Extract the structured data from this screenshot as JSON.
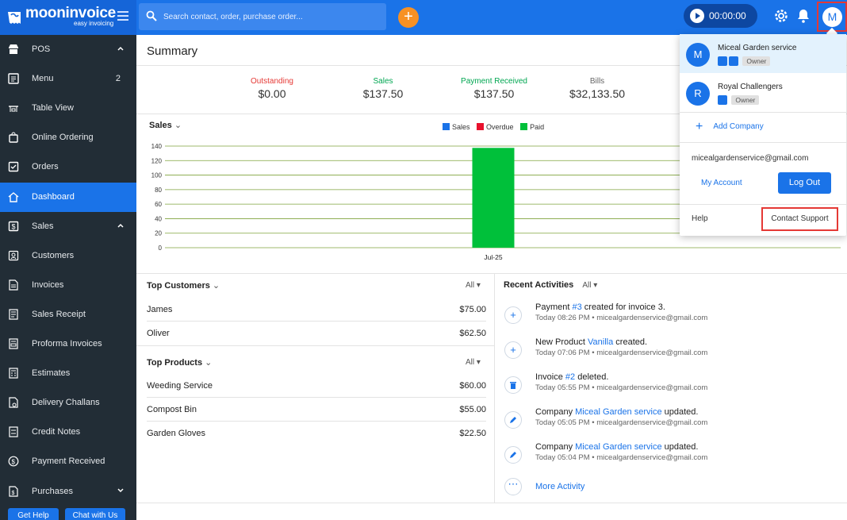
{
  "brand": {
    "name": "mooninvoice",
    "tagline": "easy invoicing"
  },
  "search": {
    "placeholder": "Search contact, order, purchase order..."
  },
  "header": {
    "add_label": "+",
    "timer": "00:00:00",
    "avatar_initial": "M"
  },
  "sidebar": {
    "items": [
      {
        "label": "POS",
        "icon": "store-icon"
      },
      {
        "label": "Menu",
        "icon": "menu-list-icon",
        "badge": "2"
      },
      {
        "label": "Table View",
        "icon": "table-icon"
      },
      {
        "label": "Online Ordering",
        "icon": "shopping-bag-icon"
      },
      {
        "label": "Orders",
        "icon": "orders-icon"
      },
      {
        "label": "Dashboard",
        "icon": "home-icon"
      },
      {
        "label": "Sales",
        "icon": "dollar-doc-icon"
      },
      {
        "label": "Customers",
        "icon": "customers-icon"
      },
      {
        "label": "Invoices",
        "icon": "invoice-icon"
      },
      {
        "label": "Sales Receipt",
        "icon": "receipt-icon"
      },
      {
        "label": "Proforma Invoices",
        "icon": "proforma-icon"
      },
      {
        "label": "Estimates",
        "icon": "estimate-icon"
      },
      {
        "label": "Delivery Challans",
        "icon": "delivery-icon"
      },
      {
        "label": "Credit Notes",
        "icon": "credit-note-icon"
      },
      {
        "label": "Payment Received",
        "icon": "payment-icon"
      },
      {
        "label": "Purchases",
        "icon": "purchase-icon"
      }
    ],
    "get_help": "Get Help",
    "chat": "Chat with Us"
  },
  "summary": {
    "title": "Summary",
    "stats": [
      {
        "label": "Outstanding",
        "value": "$0.00",
        "color": "#e53935"
      },
      {
        "label": "Sales",
        "value": "$137.50",
        "color": "#00a651"
      },
      {
        "label": "Payment Received",
        "value": "$137.50",
        "color": "#00a651"
      },
      {
        "label": "Bills",
        "value": "$32,133.50",
        "color": "#666666"
      }
    ]
  },
  "chart_data": {
    "type": "bar",
    "title": "Sales",
    "categories": [
      "Jul-25"
    ],
    "series": [
      {
        "name": "Sales",
        "color": "#1a73e8",
        "values": [
          0
        ]
      },
      {
        "name": "Overdue",
        "color": "#e8112d",
        "values": [
          0
        ]
      },
      {
        "name": "Paid",
        "color": "#00c03a",
        "values": [
          137.5
        ]
      }
    ],
    "yticks": [
      0,
      20,
      40,
      60,
      80,
      100,
      120,
      140
    ],
    "ylim": [
      0,
      140
    ],
    "legend": "top-center",
    "grid": true
  },
  "top_customers": {
    "title": "Top Customers",
    "filter": "All",
    "rows": [
      {
        "name": "James",
        "amount": "$75.00"
      },
      {
        "name": "Oliver",
        "amount": "$62.50"
      }
    ]
  },
  "top_products": {
    "title": "Top Products",
    "filter": "All",
    "rows": [
      {
        "name": "Weeding Service",
        "amount": "$60.00"
      },
      {
        "name": "Compost Bin",
        "amount": "$55.00"
      },
      {
        "name": "Garden Gloves",
        "amount": "$22.50"
      }
    ]
  },
  "activities": {
    "title": "Recent Activities",
    "filter": "All",
    "items": [
      {
        "icon": "+",
        "pre": "Payment ",
        "link": "#3",
        "post": " created for invoice 3.",
        "meta": "Today 08:26 PM • micealgardenservice@gmail.com"
      },
      {
        "icon": "+",
        "pre": "New Product ",
        "link": "Vanilla",
        "post": " created.",
        "meta": "Today 07:06 PM • micealgardenservice@gmail.com"
      },
      {
        "icon": "trash",
        "pre": "Invoice ",
        "link": "#2",
        "post": " deleted.",
        "meta": "Today 05:55 PM • micealgardenservice@gmail.com"
      },
      {
        "icon": "edit",
        "pre": "Company ",
        "link": "Miceal Garden service",
        "post": " updated.",
        "meta": "Today 05:05 PM • micealgardenservice@gmail.com"
      },
      {
        "icon": "edit",
        "pre": "Company ",
        "link": "Miceal Garden service",
        "post": " updated.",
        "meta": "Today 05:04 PM • micealgardenservice@gmail.com"
      }
    ],
    "more": "More Activity"
  },
  "dropdown": {
    "companies": [
      {
        "initial": "M",
        "name": "Miceal Garden service",
        "role": "Owner"
      },
      {
        "initial": "R",
        "name": "Royal Challengers",
        "role": "Owner"
      }
    ],
    "add_company": "Add Company",
    "email": "micealgardenservice@gmail.com",
    "my_account": "My Account",
    "logout": "Log Out",
    "help": "Help",
    "contact_support": "Contact Support"
  }
}
